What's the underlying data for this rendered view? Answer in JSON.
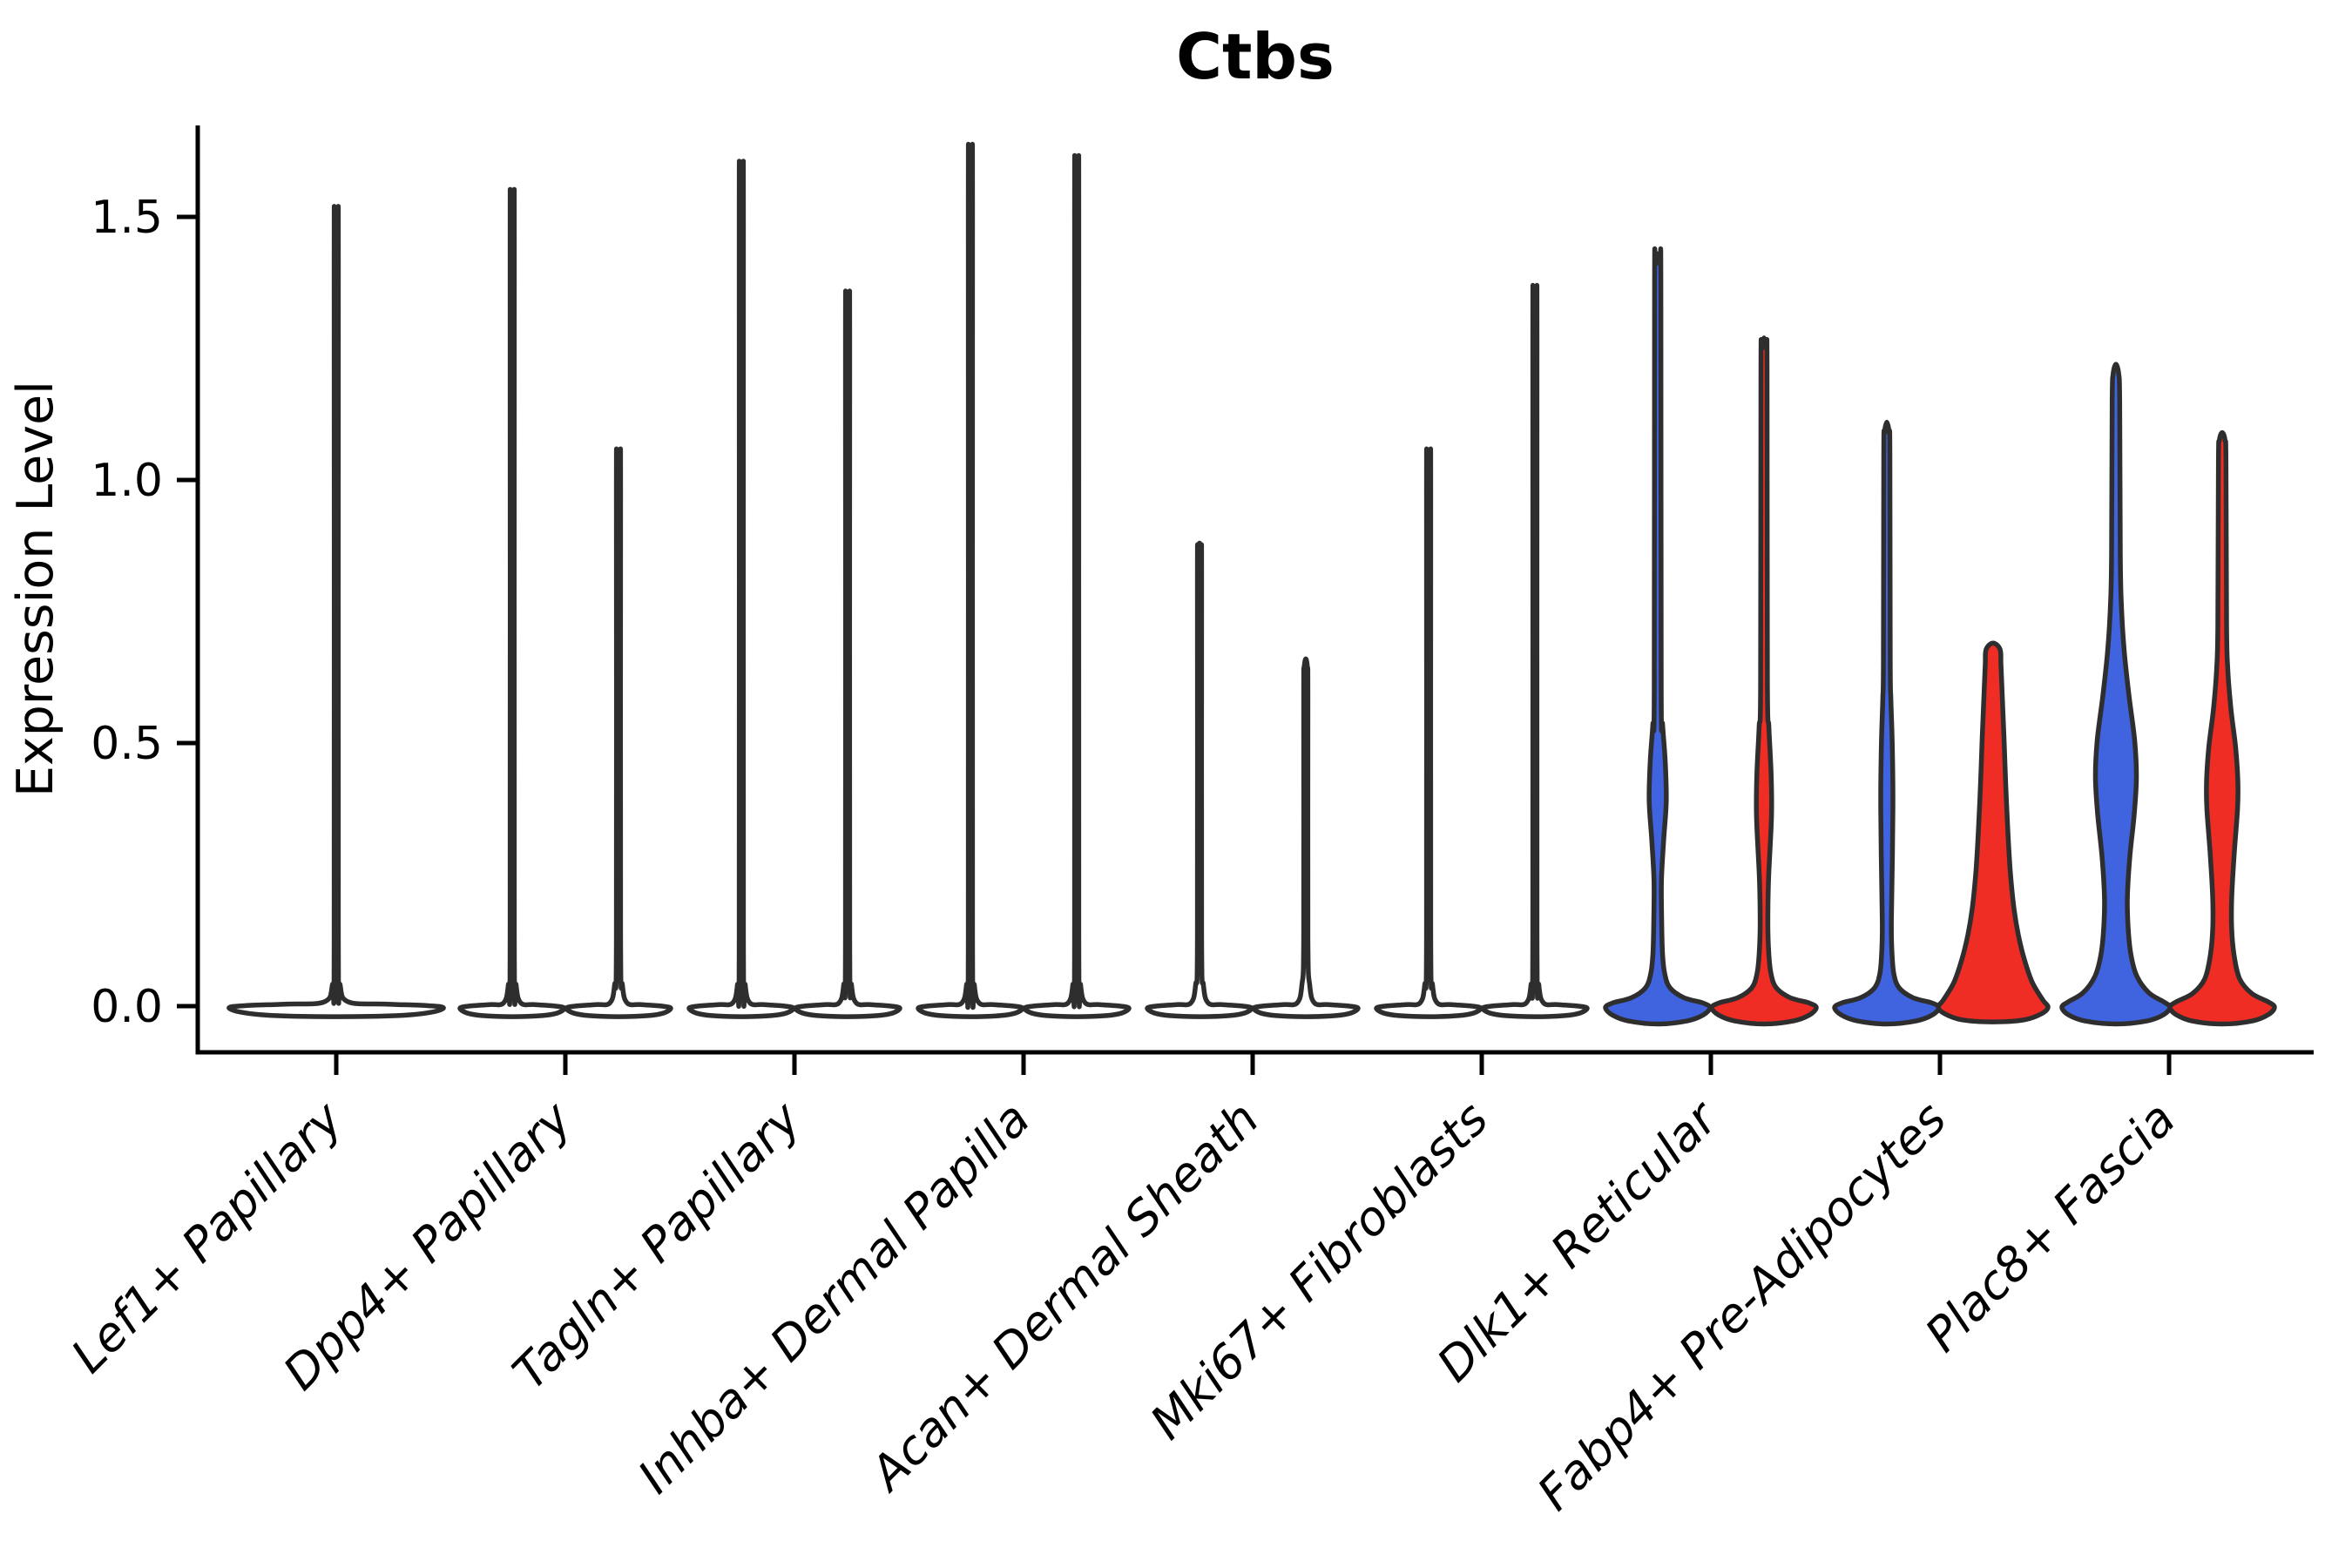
{
  "figure": {
    "background": "#FFFFFF",
    "title": "Ctbs"
  },
  "chart_data": {
    "type": "violin",
    "title": "Ctbs",
    "xlabel": "",
    "ylabel": "Expression Level",
    "grid": false,
    "legend": false,
    "ylim": [
      -0.09,
      1.67
    ],
    "ytick_labels": [
      "0.0",
      "0.5",
      "1.0",
      "1.5"
    ],
    "ytick_values": [
      0.0,
      0.5,
      1.0,
      1.5
    ],
    "categories": [
      "Lef1+ Papillary",
      "Dpp4+ Papillary",
      "Tagln+ Papillary",
      "Inhba+ Dermal Papilla",
      "Acan+ Dermal Sheath",
      "Mki67+ Fibroblasts",
      "Dlk1+ Reticular",
      "Fabp4+ Pre-Adipocytes",
      "Plac8+ Fascia"
    ],
    "palette": {
      "white": "#FFFFFF",
      "blue": "#4063DF",
      "red": "#EF2D24",
      "outline": "#2E2E2E",
      "axis": "#000000"
    },
    "needle_base_pair": [
      [
        0,
        -0.02
      ],
      [
        34,
        -0.018
      ],
      [
        52,
        -0.013
      ],
      [
        60,
        -0.004
      ],
      [
        50,
        0.0
      ],
      [
        26,
        0.003
      ],
      [
        10,
        0.006
      ],
      [
        4.5,
        0.04
      ],
      [
        2.4,
        0.13
      ]
    ],
    "needle_base_single": [
      [
        0,
        -0.02
      ],
      [
        70,
        -0.018
      ],
      [
        108,
        -0.012
      ],
      [
        123,
        -0.003
      ],
      [
        104,
        0.001
      ],
      [
        56,
        0.004
      ],
      [
        14,
        0.008
      ],
      [
        4.5,
        0.04
      ],
      [
        2.4,
        0.13
      ]
    ],
    "needle_stem": {
      "dv_run": 0.07,
      "hw_run": 2.4,
      "dv_near": 0.02,
      "hw_near": 2.0
    },
    "violins": [
      {
        "category_index": 0,
        "position": "center",
        "color": "white",
        "shape": "needle",
        "base": "single",
        "max": 1.48
      },
      {
        "category_index": 1,
        "position": "left",
        "color": "white",
        "shape": "needle",
        "base": "pair",
        "max": 1.51
      },
      {
        "category_index": 1,
        "position": "right",
        "color": "white",
        "shape": "needle",
        "base": "pair",
        "max": 1.05
      },
      {
        "category_index": 2,
        "position": "left",
        "color": "white",
        "shape": "needle",
        "base": "pair",
        "max": 1.56
      },
      {
        "category_index": 2,
        "position": "right",
        "color": "white",
        "shape": "needle",
        "base": "pair",
        "max": 1.33
      },
      {
        "category_index": 3,
        "position": "left",
        "color": "white",
        "shape": "needle",
        "base": "pair",
        "max": 1.59
      },
      {
        "category_index": 3,
        "position": "right",
        "color": "white",
        "shape": "needle",
        "base": "pair",
        "max": 1.57
      },
      {
        "category_index": 4,
        "position": "left",
        "color": "white",
        "shape": "needle",
        "base": "pair",
        "max": 0.88
      },
      {
        "category_index": 4,
        "position": "right",
        "color": "white",
        "shape": "needle",
        "base": "pair",
        "max": 0.66
      },
      {
        "category_index": 5,
        "position": "left",
        "color": "white",
        "shape": "needle",
        "base": "pair",
        "max": 1.05
      },
      {
        "category_index": 5,
        "position": "right",
        "color": "white",
        "shape": "needle",
        "base": "pair",
        "max": 1.34
      },
      {
        "category_index": 6,
        "position": "left",
        "color": "blue",
        "shape": "profile",
        "max": 1.43,
        "profile": [
          [
            0,
            -0.034
          ],
          [
            34,
            -0.028
          ],
          [
            52,
            -0.017
          ],
          [
            60,
            -0.003
          ],
          [
            52,
            0.006
          ],
          [
            30,
            0.016
          ],
          [
            14,
            0.035
          ],
          [
            8,
            0.062
          ],
          [
            5.5,
            0.1
          ],
          [
            4.5,
            0.165
          ],
          [
            4.3,
            0.24
          ],
          [
            6.8,
            0.315
          ],
          [
            9.8,
            0.39
          ],
          [
            8.6,
            0.465
          ],
          [
            5.6,
            0.535
          ],
          [
            4.0,
            0.6
          ],
          [
            3.6,
            1.37
          ],
          [
            2.8,
            1.41
          ],
          [
            0,
            1.43
          ]
        ]
      },
      {
        "category_index": 6,
        "position": "right",
        "color": "red",
        "shape": "profile",
        "max": 1.27,
        "profile": [
          [
            0,
            -0.034
          ],
          [
            34,
            -0.028
          ],
          [
            52,
            -0.017
          ],
          [
            60,
            -0.003
          ],
          [
            52,
            0.006
          ],
          [
            30,
            0.016
          ],
          [
            14,
            0.035
          ],
          [
            8,
            0.062
          ],
          [
            5.5,
            0.1
          ],
          [
            4.4,
            0.155
          ],
          [
            5.2,
            0.24
          ],
          [
            8.6,
            0.36
          ],
          [
            8.2,
            0.44
          ],
          [
            5.6,
            0.53
          ],
          [
            3.9,
            0.615
          ],
          [
            3.5,
            1.21
          ],
          [
            2.7,
            1.25
          ],
          [
            0,
            1.27
          ]
        ]
      },
      {
        "category_index": 7,
        "position": "left",
        "color": "blue",
        "shape": "profile",
        "max": 1.11,
        "profile": [
          [
            0,
            -0.034
          ],
          [
            34,
            -0.028
          ],
          [
            52,
            -0.017
          ],
          [
            60,
            -0.003
          ],
          [
            52,
            0.006
          ],
          [
            30,
            0.016
          ],
          [
            14,
            0.035
          ],
          [
            8,
            0.062
          ],
          [
            5.8,
            0.105
          ],
          [
            5.2,
            0.16
          ],
          [
            6.4,
            0.285
          ],
          [
            7.0,
            0.395
          ],
          [
            6.2,
            0.5
          ],
          [
            4.6,
            0.585
          ],
          [
            3.9,
            0.655
          ],
          [
            3.5,
            1.05
          ],
          [
            2.7,
            1.09
          ],
          [
            0,
            1.11
          ]
        ]
      },
      {
        "category_index": 7,
        "position": "right",
        "color": "red",
        "shape": "profile",
        "max": 0.69,
        "profile": [
          [
            0,
            -0.03
          ],
          [
            36,
            -0.026
          ],
          [
            56,
            -0.014
          ],
          [
            63,
            -0.002
          ],
          [
            57,
            0.012
          ],
          [
            45,
            0.045
          ],
          [
            36,
            0.088
          ],
          [
            29,
            0.135
          ],
          [
            24,
            0.185
          ],
          [
            20,
            0.25
          ],
          [
            17,
            0.33
          ],
          [
            14.5,
            0.42
          ],
          [
            12.5,
            0.51
          ],
          [
            10.5,
            0.59
          ],
          [
            9,
            0.65
          ],
          [
            8,
            0.678
          ],
          [
            0,
            0.69
          ]
        ]
      },
      {
        "category_index": 8,
        "position": "left",
        "color": "blue",
        "shape": "profile",
        "max": 1.22,
        "profile": [
          [
            0,
            -0.034
          ],
          [
            36,
            -0.028
          ],
          [
            55,
            -0.016
          ],
          [
            62,
            -0.002
          ],
          [
            55,
            0.008
          ],
          [
            38,
            0.025
          ],
          [
            24,
            0.057
          ],
          [
            17,
            0.1
          ],
          [
            13.8,
            0.155
          ],
          [
            13.2,
            0.21
          ],
          [
            16,
            0.285
          ],
          [
            21,
            0.365
          ],
          [
            23.5,
            0.435
          ],
          [
            21.5,
            0.505
          ],
          [
            15,
            0.59
          ],
          [
            9.5,
            0.675
          ],
          [
            6.2,
            0.765
          ],
          [
            5.0,
            0.86
          ],
          [
            4.3,
            1.15
          ],
          [
            3.3,
            1.2
          ],
          [
            0,
            1.22
          ]
        ]
      },
      {
        "category_index": 8,
        "position": "right",
        "color": "red",
        "shape": "profile",
        "max": 1.09,
        "profile": [
          [
            0,
            -0.034
          ],
          [
            35,
            -0.028
          ],
          [
            53,
            -0.016
          ],
          [
            60,
            -0.002
          ],
          [
            53,
            0.008
          ],
          [
            34,
            0.024
          ],
          [
            20,
            0.052
          ],
          [
            13.5,
            0.098
          ],
          [
            10.8,
            0.15
          ],
          [
            11,
            0.21
          ],
          [
            13.8,
            0.29
          ],
          [
            17.6,
            0.375
          ],
          [
            18,
            0.425
          ],
          [
            15.5,
            0.49
          ],
          [
            10,
            0.565
          ],
          [
            6.4,
            0.64
          ],
          [
            5.0,
            0.725
          ],
          [
            4.3,
            1.035
          ],
          [
            3.3,
            1.075
          ],
          [
            0,
            1.09
          ]
        ]
      }
    ]
  }
}
